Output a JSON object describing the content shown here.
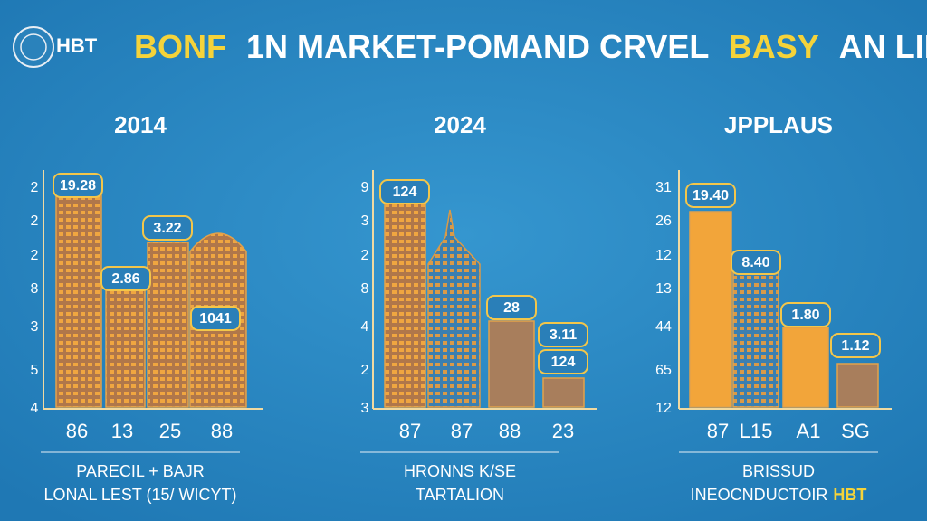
{
  "header": {
    "logo_text": "HBT",
    "title_parts": [
      "BONF",
      "1N MARKET-POMAND CRVEL",
      "BASY",
      "AN LINE"
    ]
  },
  "panels": [
    {
      "title": "2014",
      "y_labels": [
        "2",
        "2",
        "2",
        "8",
        "3",
        "5",
        "4"
      ],
      "bar_labels": [
        "19.28",
        "2.86",
        "3.22",
        "1041"
      ],
      "x_labels": [
        "86",
        "13",
        "25",
        "88"
      ],
      "caption": [
        "PARECIL + BAJR",
        "LONAL LEST (15/ WICYT)"
      ]
    },
    {
      "title": "2024",
      "y_labels": [
        "9",
        "3",
        "2",
        "8",
        "4",
        "2",
        "3"
      ],
      "bar_labels": [
        "124",
        "28",
        "3.11",
        "124"
      ],
      "x_labels": [
        "87",
        "87",
        "88",
        "23"
      ],
      "caption": [
        "HRONNS K/SE",
        "TARTALION"
      ]
    },
    {
      "title": "JPPLAUS",
      "y_labels": [
        "31",
        "26",
        "12",
        "13",
        "44",
        "65",
        "12"
      ],
      "bar_labels": [
        "19.40",
        "8.40",
        "1.80",
        "1.12"
      ],
      "x_labels": [
        "87",
        "L15",
        "A1",
        "SG"
      ],
      "caption": [
        "BRISSUD",
        "INEOCNDUCTOIR",
        "HBT"
      ]
    }
  ]
}
